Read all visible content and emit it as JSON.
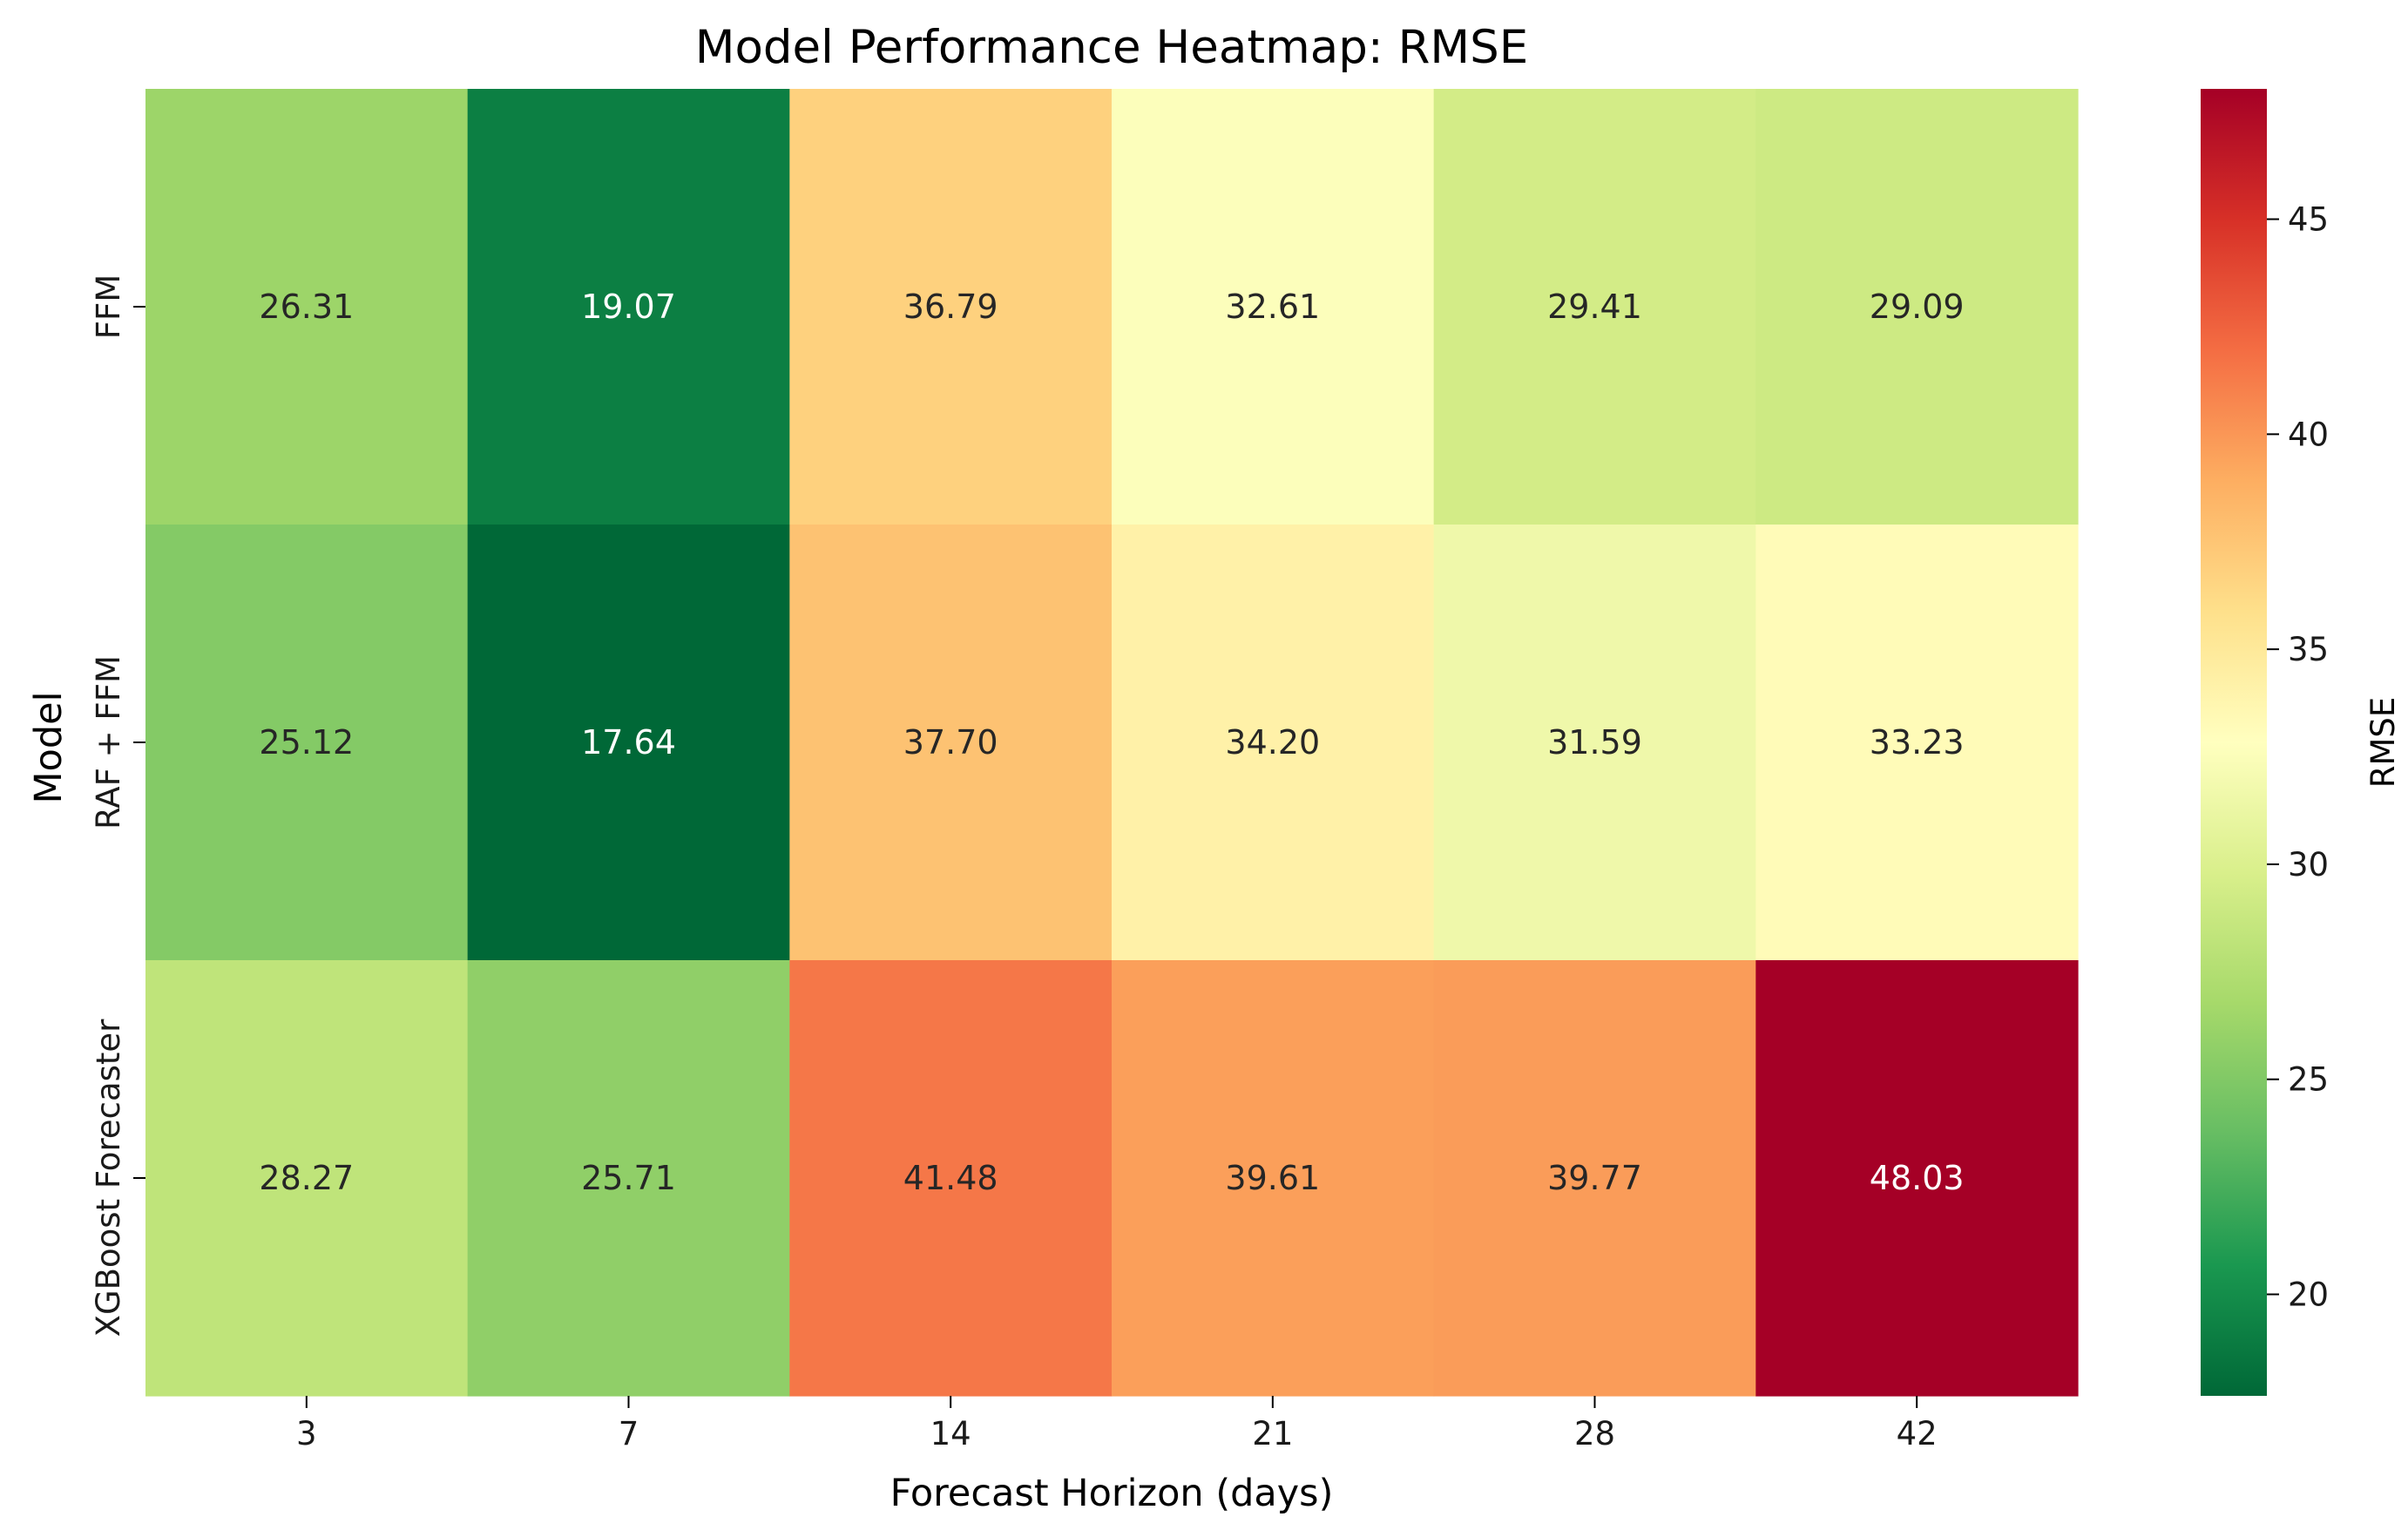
{
  "chart_data": {
    "type": "heatmap",
    "title": "Model Performance Heatmap: RMSE",
    "xlabel": "Forecast Horizon (days)",
    "ylabel": "Model",
    "x_categories": [
      "3",
      "7",
      "14",
      "21",
      "28",
      "42"
    ],
    "y_categories": [
      "FFM",
      "RAF + FFM",
      "XGBoost Forecaster"
    ],
    "values": [
      [
        26.31,
        19.07,
        36.79,
        32.61,
        29.41,
        29.09
      ],
      [
        25.12,
        17.64,
        37.7,
        34.2,
        31.59,
        33.23
      ],
      [
        28.27,
        25.71,
        41.48,
        39.61,
        39.77,
        48.03
      ]
    ],
    "value_format": "0.00",
    "colormap": "RdYlGn_r",
    "colorbar": {
      "label": "RMSE",
      "range": [
        17.64,
        48.03
      ],
      "ticks": [
        20,
        25,
        30,
        35,
        40,
        45
      ]
    },
    "annotation_colors": {
      "dark": "#262626",
      "light": "#ffffff"
    }
  }
}
